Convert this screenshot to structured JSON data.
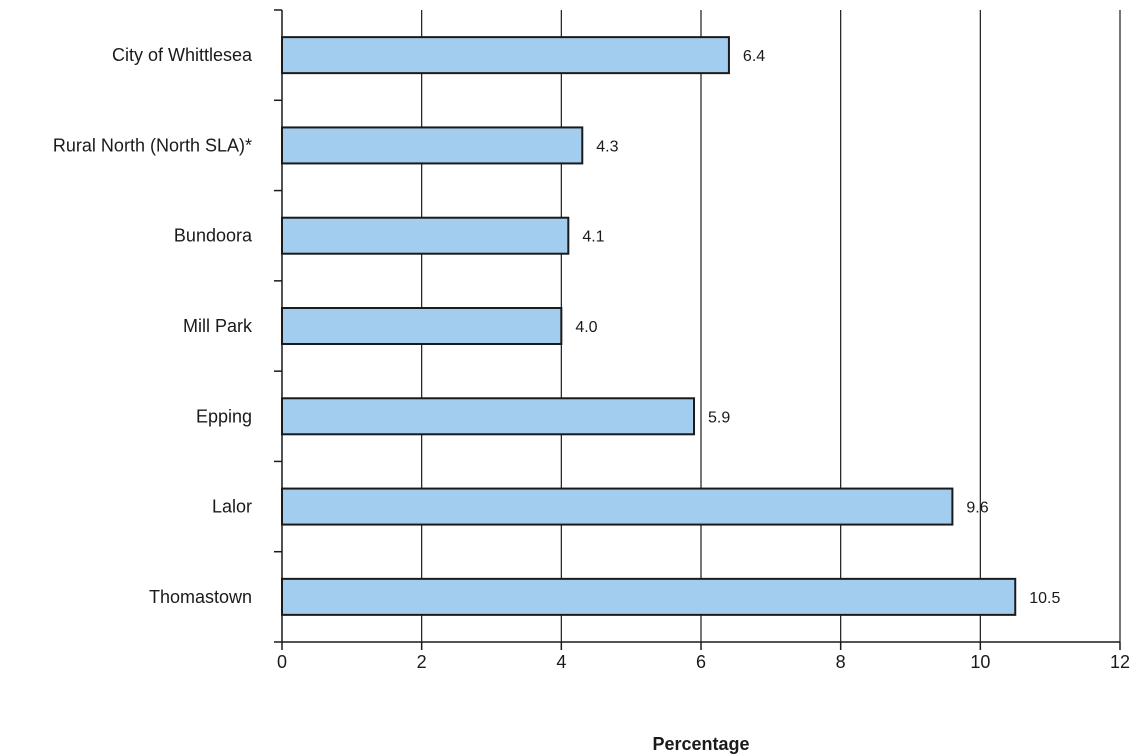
{
  "chart_data": {
    "type": "bar",
    "orientation": "horizontal",
    "categories": [
      "City of Whittlesea",
      "Rural North (North SLA)*",
      "Bundoora",
      "Mill Park",
      "Epping",
      "Lalor",
      "Thomastown"
    ],
    "values": [
      6.4,
      4.3,
      4.1,
      4.0,
      5.9,
      9.6,
      10.5
    ],
    "value_labels": [
      "6.4",
      "4.3",
      "4.1",
      "4.0",
      "5.9",
      "9.6",
      "10.5"
    ],
    "title": "",
    "xlabel": "Percentage",
    "ylabel": "",
    "xlim": [
      0,
      12
    ],
    "x_ticks": [
      0,
      2,
      4,
      6,
      8,
      10,
      12
    ],
    "x_tick_labels": [
      "0",
      "2",
      "4",
      "6",
      "8",
      "10",
      "12"
    ],
    "grid": "vertical",
    "legend": "none",
    "bar_color": "#a3cdee",
    "bar_edge_color": "#1a1a1a"
  }
}
